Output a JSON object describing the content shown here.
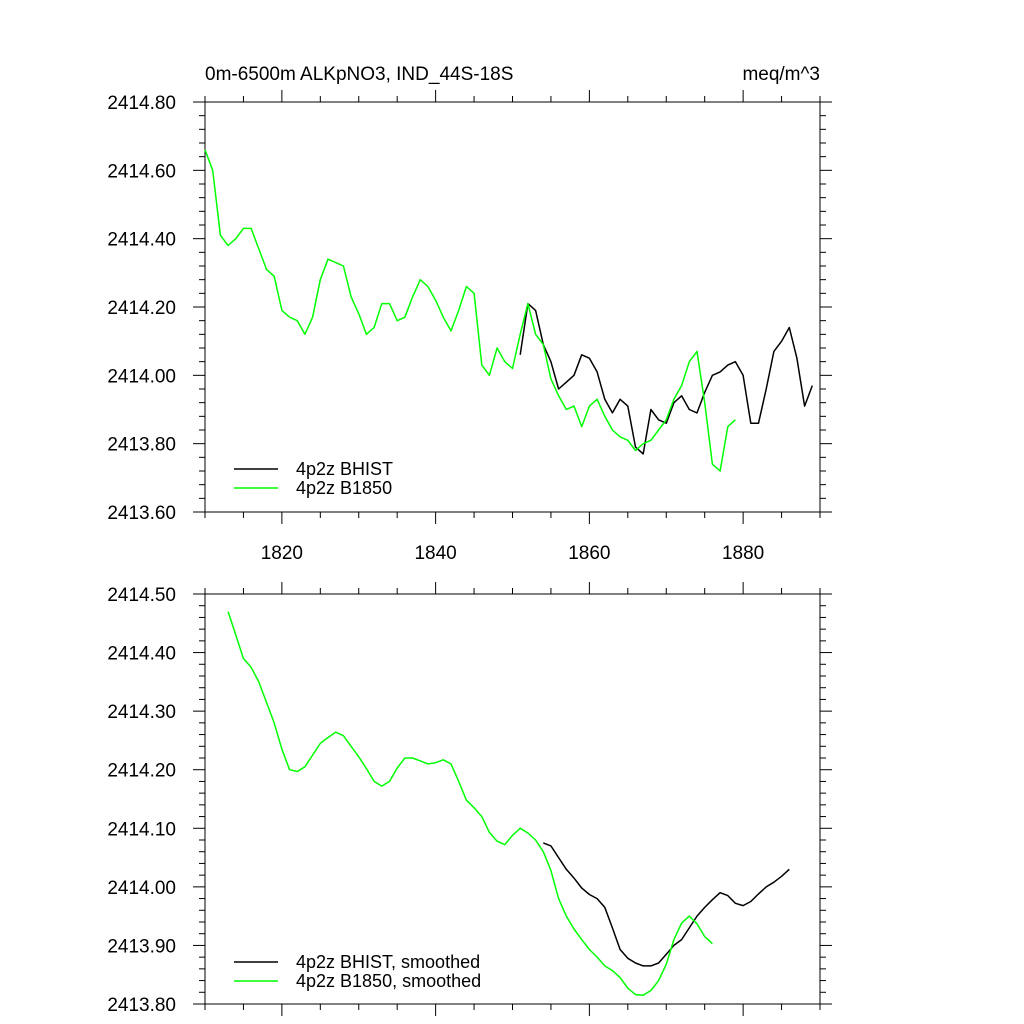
{
  "chart_data": [
    {
      "type": "line",
      "title": "0m-6500m ALKpNO3, IND_44S-18S",
      "units": "meq/m^3",
      "xlim": [
        1810,
        1890
      ],
      "ylim": [
        2413.6,
        2414.8
      ],
      "xticks": [
        1820,
        1840,
        1860,
        1880
      ],
      "xtick_labels": [
        "1820",
        "1840",
        "1860",
        "1880"
      ],
      "yticks": [
        2413.6,
        2413.8,
        2414.0,
        2414.2,
        2414.4,
        2414.6,
        2414.8
      ],
      "ytick_labels": [
        "2413.60",
        "2413.80",
        "2414.00",
        "2414.20",
        "2414.40",
        "2414.60",
        "2414.80"
      ],
      "legend_position": "bottom-left",
      "series": [
        {
          "name": "4p2z BHIST",
          "color": "#000000",
          "x": [
            1851,
            1852,
            1853,
            1854,
            1855,
            1856,
            1857,
            1858,
            1859,
            1860,
            1861,
            1862,
            1863,
            1864,
            1865,
            1866,
            1867,
            1868,
            1869,
            1870,
            1871,
            1872,
            1873,
            1874,
            1875,
            1876,
            1877,
            1878,
            1879,
            1880,
            1881,
            1882,
            1883,
            1884,
            1885,
            1886,
            1887,
            1888,
            1889
          ],
          "values": [
            2414.06,
            2414.21,
            2414.19,
            2414.09,
            2414.04,
            2413.96,
            2413.98,
            2414.0,
            2414.06,
            2414.05,
            2414.01,
            2413.93,
            2413.89,
            2413.93,
            2413.91,
            2413.79,
            2413.77,
            2413.9,
            2413.87,
            2413.86,
            2413.92,
            2413.94,
            2413.9,
            2413.89,
            2413.95,
            2414.0,
            2414.01,
            2414.03,
            2414.04,
            2414.0,
            2413.86,
            2413.86,
            2413.96,
            2414.07,
            2414.1,
            2414.14,
            2414.05,
            2413.91,
            2413.97
          ]
        },
        {
          "name": "4p2z B1850",
          "color": "#00ff00",
          "x": [
            1810,
            1811,
            1812,
            1813,
            1814,
            1815,
            1816,
            1817,
            1818,
            1819,
            1820,
            1821,
            1822,
            1823,
            1824,
            1825,
            1826,
            1827,
            1828,
            1829,
            1830,
            1831,
            1832,
            1833,
            1834,
            1835,
            1836,
            1837,
            1838,
            1839,
            1840,
            1841,
            1842,
            1843,
            1844,
            1845,
            1846,
            1847,
            1848,
            1849,
            1850,
            1851,
            1852,
            1853,
            1854,
            1855,
            1856,
            1857,
            1858,
            1859,
            1860,
            1861,
            1862,
            1863,
            1864,
            1865,
            1866,
            1867,
            1868,
            1869,
            1870,
            1871,
            1872,
            1873,
            1874,
            1875,
            1876,
            1877,
            1878,
            1879
          ],
          "values": [
            2414.66,
            2414.6,
            2414.41,
            2414.38,
            2414.4,
            2414.43,
            2414.43,
            2414.37,
            2414.31,
            2414.29,
            2414.19,
            2414.17,
            2414.16,
            2414.12,
            2414.17,
            2414.28,
            2414.34,
            2414.33,
            2414.32,
            2414.23,
            2414.18,
            2414.12,
            2414.14,
            2414.21,
            2414.21,
            2414.16,
            2414.17,
            2414.23,
            2414.28,
            2414.26,
            2414.22,
            2414.17,
            2414.13,
            2414.19,
            2414.26,
            2414.24,
            2414.03,
            2414.0,
            2414.08,
            2414.04,
            2414.02,
            2414.12,
            2414.21,
            2414.12,
            2414.09,
            2413.99,
            2413.94,
            2413.9,
            2413.91,
            2413.85,
            2413.91,
            2413.93,
            2413.88,
            2413.84,
            2413.82,
            2413.81,
            2413.78,
            2413.8,
            2413.81,
            2413.84,
            2413.87,
            2413.93,
            2413.97,
            2414.04,
            2414.07,
            2413.92,
            2413.74,
            2413.72,
            2413.85,
            2413.87
          ]
        }
      ]
    },
    {
      "type": "line",
      "title": "",
      "xlim": [
        1810,
        1890
      ],
      "ylim": [
        2413.8,
        2414.5
      ],
      "xticks": [
        1820,
        1840,
        1860,
        1880
      ],
      "xtick_labels": [],
      "yticks": [
        2413.8,
        2413.9,
        2414.0,
        2414.1,
        2414.2,
        2414.3,
        2414.4,
        2414.5
      ],
      "ytick_labels": [
        "2413.80",
        "2413.90",
        "2414.00",
        "2414.10",
        "2414.20",
        "2414.30",
        "2414.40",
        "2414.50"
      ],
      "legend_position": "bottom-left",
      "series": [
        {
          "name": "4p2z BHIST, smoothed",
          "color": "#000000",
          "x": [
            1854,
            1855,
            1856,
            1857,
            1858,
            1859,
            1860,
            1861,
            1862,
            1863,
            1864,
            1865,
            1866,
            1867,
            1868,
            1869,
            1870,
            1871,
            1872,
            1873,
            1874,
            1875,
            1876,
            1877,
            1878,
            1879,
            1880,
            1881,
            1882,
            1883,
            1884,
            1885,
            1886
          ],
          "values": [
            2414.075,
            2414.07,
            2414.05,
            2414.03,
            2414.015,
            2413.998,
            2413.987,
            2413.98,
            2413.965,
            2413.93,
            2413.893,
            2413.878,
            2413.87,
            2413.865,
            2413.865,
            2413.87,
            2413.885,
            2413.9,
            2413.91,
            2413.93,
            2413.95,
            2413.965,
            2413.978,
            2413.99,
            2413.985,
            2413.972,
            2413.968,
            2413.975,
            2413.988,
            2414.0,
            2414.008,
            2414.018,
            2414.03
          ]
        },
        {
          "name": "4p2z B1850, smoothed",
          "color": "#00ff00",
          "x": [
            1813,
            1814,
            1815,
            1816,
            1817,
            1818,
            1819,
            1820,
            1821,
            1822,
            1823,
            1824,
            1825,
            1826,
            1827,
            1828,
            1829,
            1830,
            1831,
            1832,
            1833,
            1834,
            1835,
            1836,
            1837,
            1838,
            1839,
            1840,
            1841,
            1842,
            1843,
            1844,
            1845,
            1846,
            1847,
            1848,
            1849,
            1850,
            1851,
            1852,
            1853,
            1854,
            1855,
            1856,
            1857,
            1858,
            1859,
            1860,
            1861,
            1862,
            1863,
            1864,
            1865,
            1866,
            1867,
            1868,
            1869,
            1870,
            1871,
            1872,
            1873,
            1874,
            1875,
            1876
          ],
          "values": [
            2414.47,
            2414.43,
            2414.39,
            2414.375,
            2414.35,
            2414.315,
            2414.28,
            2414.235,
            2414.2,
            2414.197,
            2414.205,
            2414.225,
            2414.245,
            2414.255,
            2414.264,
            2414.258,
            2414.24,
            2414.222,
            2414.202,
            2414.18,
            2414.172,
            2414.18,
            2414.203,
            2414.22,
            2414.22,
            2414.215,
            2414.21,
            2414.212,
            2414.217,
            2414.21,
            2414.18,
            2414.148,
            2414.135,
            2414.12,
            2414.093,
            2414.078,
            2414.072,
            2414.088,
            2414.1,
            2414.092,
            2414.08,
            2414.06,
            2414.028,
            2413.98,
            2413.95,
            2413.928,
            2413.91,
            2413.893,
            2413.88,
            2413.865,
            2413.857,
            2413.845,
            2413.827,
            2413.816,
            2413.815,
            2413.823,
            2413.84,
            2413.868,
            2413.91,
            2413.938,
            2413.95,
            2413.937,
            2413.915,
            2413.903
          ]
        }
      ]
    }
  ]
}
